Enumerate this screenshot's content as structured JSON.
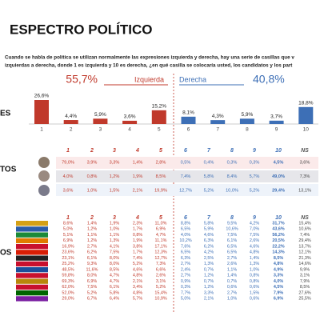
{
  "header": {
    "title": "ESPECTRO POLÍTICO",
    "intro": [
      "Cuando se habla de política se utilizan normalmente las expresiones izquierda y derecha, hay una serie de casillas que v",
      "izquierdas a derecha, donde 1 es izquierda  y 10 es derecha, ¿en qué casilla se colocaría usted, los candidatos y los part"
    ]
  },
  "chart_data": {
    "type": "bar",
    "label": "ES",
    "left_group": {
      "share": "55,7%",
      "name": "Izquierda"
    },
    "right_group": {
      "name": "Derecha",
      "share": "40,8%"
    },
    "categories": [
      "1",
      "2",
      "3",
      "4",
      "5",
      "6",
      "7",
      "8",
      "9",
      "10"
    ],
    "values": [
      26.6,
      4.4,
      5.9,
      3.6,
      15.2,
      8.1,
      4.3,
      5.9,
      3.7,
      18.8
    ],
    "value_labels": [
      "26,6%",
      "4,4%",
      "5,9%",
      "3,6%",
      "15,2%",
      "8,1%",
      "4,3%",
      "5,9%",
      "3,7%",
      "18,8%"
    ],
    "colors": [
      "#c0392b",
      "#c0392b",
      "#c0392b",
      "#c0392b",
      "#c0392b",
      "#3d6fb6",
      "#3d6fb6",
      "#3d6fb6",
      "#3d6fb6",
      "#3d6fb6"
    ]
  },
  "candidates": {
    "label": "TOS",
    "columns": [
      "1",
      "2",
      "3",
      "4",
      "5",
      "6",
      "7",
      "8",
      "9",
      "10",
      "NS"
    ],
    "rows": [
      [
        "79,0%",
        "3,9%",
        "3,3%",
        "1,4%",
        "2,8%",
        "0,5%",
        "0,4%",
        "0,3%",
        "0,3%",
        "4,5%",
        "3,6%"
      ],
      [
        "4,0%",
        "0,8%",
        "1,2%",
        "1,9%",
        "8,5%",
        "7,4%",
        "5,8%",
        "8,4%",
        "5,7%",
        "49,0%",
        "7,3%"
      ],
      [
        "3,6%",
        "1,0%",
        "1,5%",
        "2,1%",
        "19,9%",
        "12,7%",
        "5,2%",
        "10,0%",
        "5,2%",
        "29,4%",
        "13,1%"
      ]
    ]
  },
  "parties": {
    "label": "OS",
    "columns": [
      "1",
      "2",
      "3",
      "4",
      "5",
      "6",
      "7",
      "8",
      "9",
      "10",
      "NS"
    ],
    "rows": [
      [
        "8,6%",
        "1,4%",
        "1,9%",
        "2,3%",
        "11,0%",
        "8,8%",
        "5,8%",
        "9,5%",
        "4,2%",
        "31,7%",
        "15,4%"
      ],
      [
        "5,0%",
        "1,2%",
        "1,0%",
        "1,7%",
        "6,9%",
        "6,5%",
        "5,9%",
        "10,6%",
        "7,0%",
        "43,6%",
        "10,6%"
      ],
      [
        "5,1%",
        "1,1%",
        "1,1%",
        "0,8%",
        "4,7%",
        "4,0%",
        "4,6%",
        "7,5%",
        "7,5%",
        "56,2%",
        "7,4%"
      ],
      [
        "6,9%",
        "1,2%",
        "1,3%",
        "1,9%",
        "11,1%",
        "10,2%",
        "6,3%",
        "6,1%",
        "2,6%",
        "20,5%",
        "29,4%"
      ],
      [
        "16,9%",
        "2,7%",
        "4,1%",
        "3,8%",
        "17,1%",
        "7,6%",
        "6,2%",
        "6,5%",
        "4,6%",
        "22,2%",
        "13,7%"
      ],
      [
        "23,6%",
        "6,2%",
        "7,5%",
        "1,7%",
        "12,3%",
        "6,5%",
        "4,2%",
        "6,5%",
        "4,8%",
        "14,3%",
        "12,1%"
      ],
      [
        "23,1%",
        "6,1%",
        "8,0%",
        "7,4%",
        "12,7%",
        "6,3%",
        "2,5%",
        "2,7%",
        "1,4%",
        "8,5%",
        "21,3%"
      ],
      [
        "25,2%",
        "9,3%",
        "8,0%",
        "5,2%",
        "7,3%",
        "2,7%",
        "1,3%",
        "2,6%",
        "1,3%",
        "4,8%",
        "14,6%"
      ],
      [
        "48,5%",
        "11,6%",
        "8,5%",
        "4,6%",
        "6,6%",
        "2,4%",
        "0,7%",
        "1,1%",
        "1,0%",
        "4,9%",
        "9,9%"
      ],
      [
        "59,8%",
        "8,0%",
        "4,7%",
        "4,8%",
        "2,6%",
        "2,7%",
        "1,2%",
        "1,4%",
        "0,8%",
        "3,3%",
        "3,1%"
      ],
      [
        "69,3%",
        "6,9%",
        "4,7%",
        "2,1%",
        "3,1%",
        "0,9%",
        "0,7%",
        "0,7%",
        "0,8%",
        "4,0%",
        "7,9%"
      ],
      [
        "62,0%",
        "7,5%",
        "6,1%",
        "3,4%",
        "5,2%",
        "0,3%",
        "1,2%",
        "0,6%",
        "0,6%",
        "4,5%",
        "8,5%"
      ],
      [
        "52,0%",
        "5,2%",
        "5,8%",
        "4,8%",
        "15,4%",
        "7,7%",
        "3,3%",
        "2,7%",
        "1,5%",
        "7,9%",
        "27,6%"
      ],
      [
        "29,0%",
        "6,7%",
        "6,4%",
        "5,7%",
        "10,9%",
        "5,0%",
        "2,1%",
        "1,0%",
        "0,6%",
        "6,9%",
        "25,5%"
      ]
    ]
  }
}
